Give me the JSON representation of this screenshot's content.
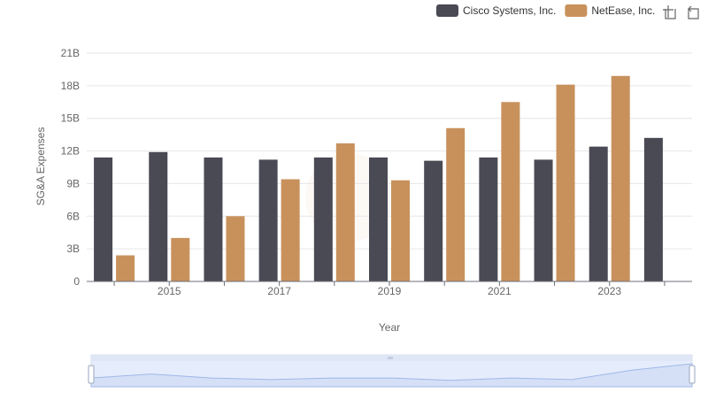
{
  "chart_data": {
    "type": "bar",
    "xlabel": "Year",
    "ylabel": "SG&A Expenses",
    "ylim": [
      0,
      21000000000
    ],
    "y_ticks": [
      "0",
      "3B",
      "6B",
      "9B",
      "12B",
      "15B",
      "18B",
      "21B"
    ],
    "x": [
      2014,
      2015,
      2016,
      2017,
      2018,
      2019,
      2020,
      2021,
      2022,
      2023,
      2024
    ],
    "x_tick_labels": [
      "2015",
      "2017",
      "2019",
      "2021",
      "2023"
    ],
    "legend_position": "top-right",
    "grid": true,
    "series": [
      {
        "name": "Cisco Systems, Inc.",
        "color": "#4a4a55",
        "values": [
          11400000000,
          11900000000,
          11400000000,
          11200000000,
          11400000000,
          11400000000,
          11100000000,
          11400000000,
          11200000000,
          12400000000,
          13200000000
        ]
      },
      {
        "name": "NetEase, Inc.",
        "color": "#c8915c",
        "values": [
          2400000000,
          4000000000,
          6000000000,
          9400000000,
          12700000000,
          9300000000,
          14100000000,
          16500000000,
          18100000000,
          18900000000,
          null
        ]
      }
    ]
  },
  "toolbar": {
    "icons": [
      "zoom-icon",
      "restore-icon"
    ]
  }
}
